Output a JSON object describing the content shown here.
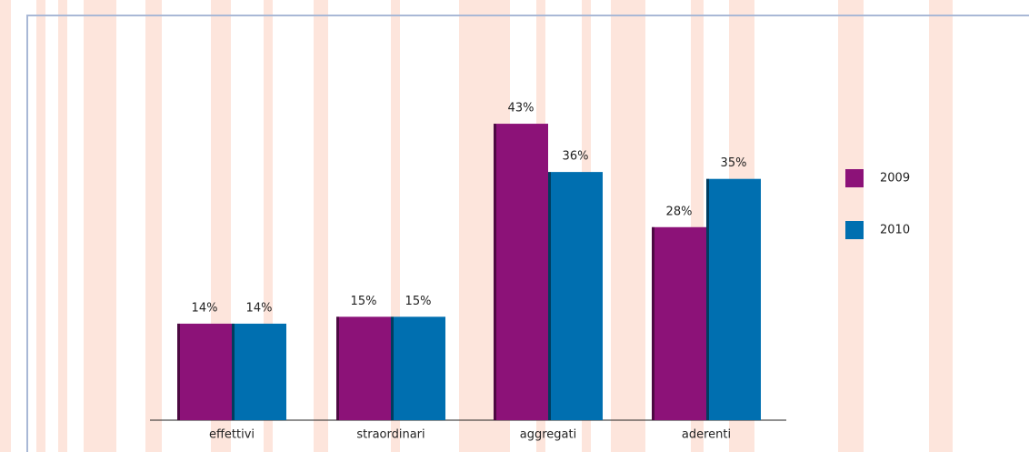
{
  "chart_data": {
    "type": "bar",
    "categories": [
      "effettivi",
      "straordinari",
      "aggregati",
      "aderenti"
    ],
    "series": [
      {
        "name": "2009",
        "color": "#8c1278",
        "values": [
          14,
          15,
          43,
          28
        ],
        "value_labels": [
          "14%",
          "15%",
          "43%",
          "28%"
        ]
      },
      {
        "name": "2010",
        "color": "#006fb0",
        "values": [
          14,
          15,
          36,
          35
        ],
        "value_labels": [
          "14%",
          "15%",
          "36%",
          "35%"
        ]
      }
    ],
    "legend": "right"
  }
}
